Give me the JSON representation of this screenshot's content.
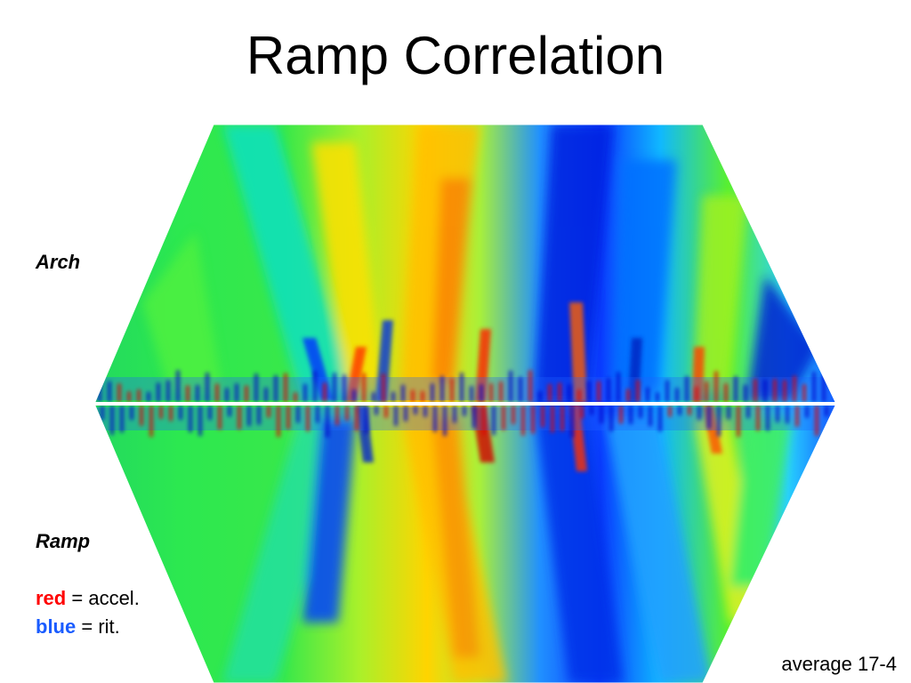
{
  "slide": {
    "title": "Ramp Correlation",
    "footnote": "average 17-4"
  },
  "labels": {
    "arch": "Arch",
    "ramp": "Ramp"
  },
  "legend": {
    "red_key": "red",
    "red_text": "= accel.",
    "red_color": "#ff0000",
    "blue_key": "blue",
    "blue_text": "= rit.",
    "blue_color": "#1a5cff"
  },
  "scape": {
    "type": "correlation-scape",
    "colormap": [
      "#0000c8",
      "#0050ff",
      "#00c8ff",
      "#00e070",
      "#7cf000",
      "#ffff00",
      "#ffb000",
      "#ff5000",
      "#e00000"
    ],
    "top_half": "Arch",
    "bottom_half": "Ramp",
    "meaning": {
      "red": "accel.",
      "blue": "rit."
    }
  }
}
